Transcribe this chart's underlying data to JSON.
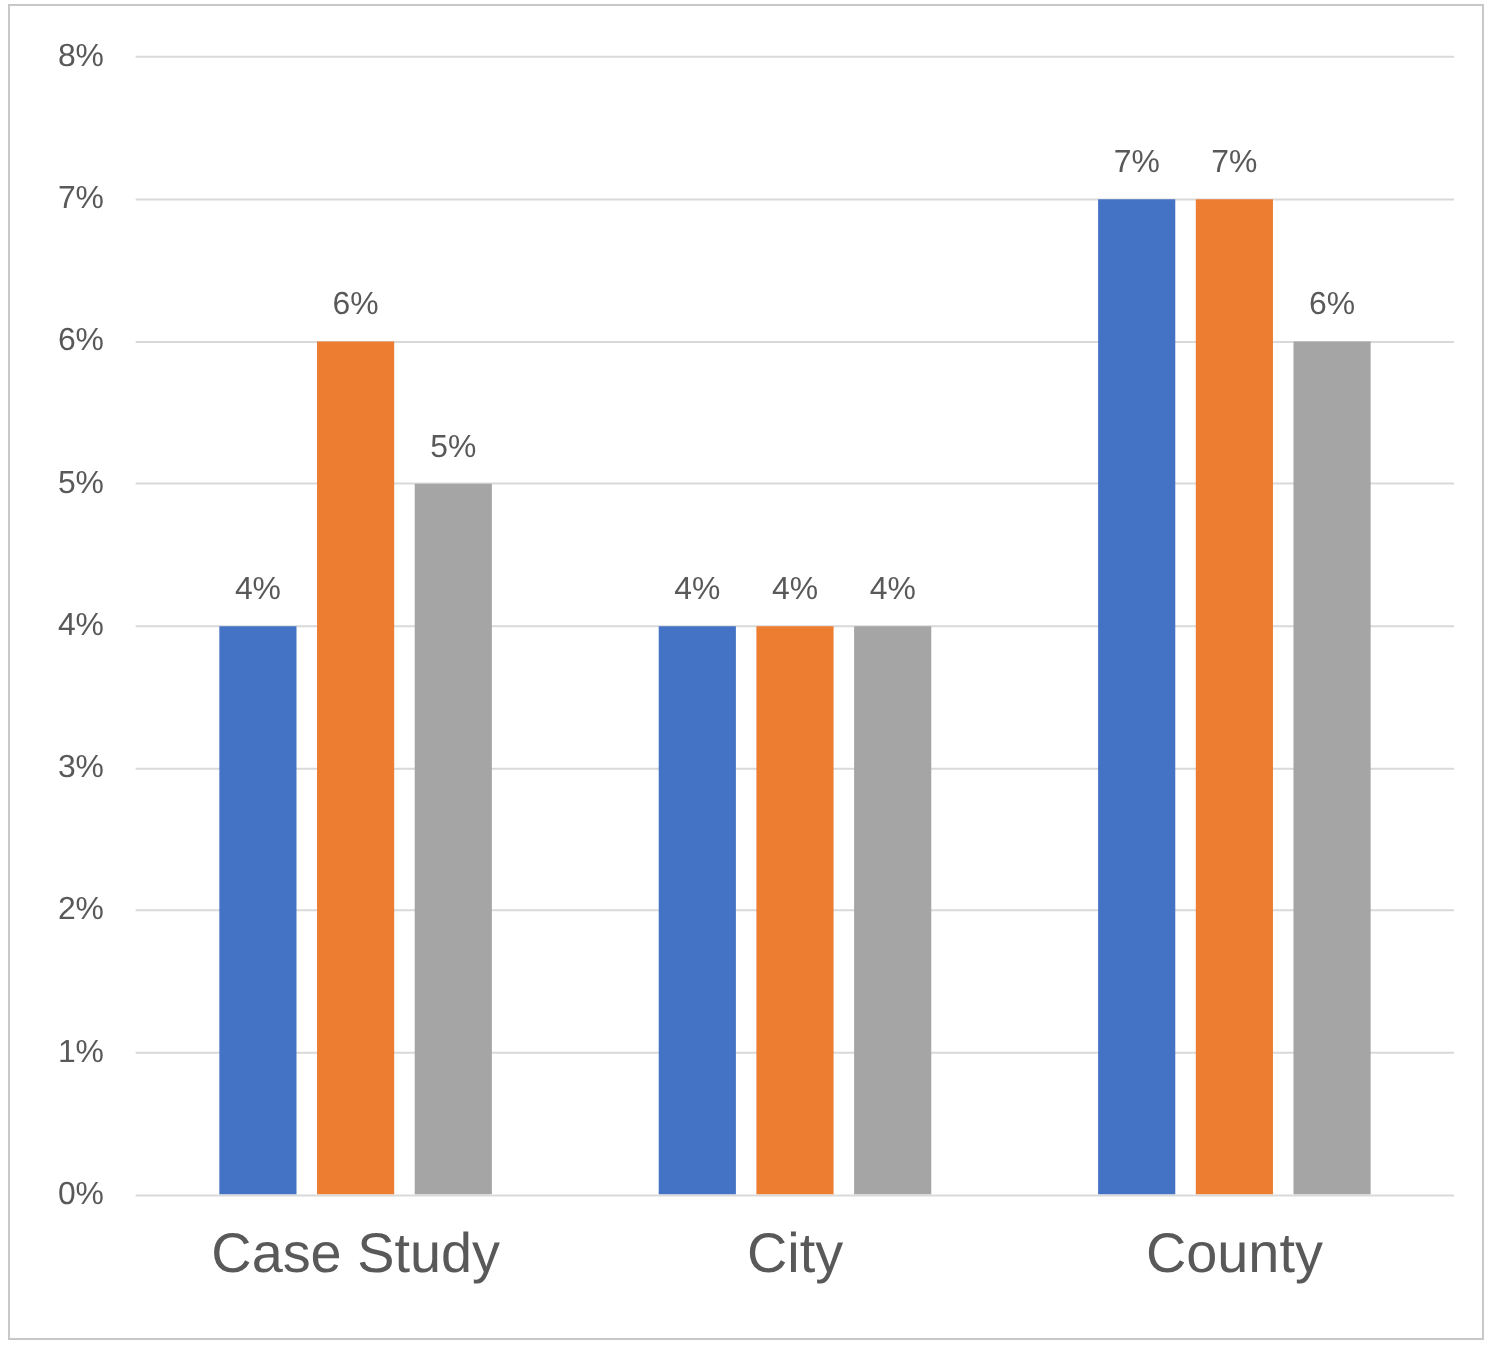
{
  "chart_data": {
    "type": "bar",
    "categories": [
      "Case Study",
      "City",
      "County"
    ],
    "series": [
      {
        "color": "#4472c4",
        "values": [
          4,
          4,
          7
        ],
        "value_labels": [
          "4%",
          "4%",
          "7%"
        ]
      },
      {
        "color": "#ed7d31",
        "values": [
          6,
          4,
          7
        ],
        "value_labels": [
          "6%",
          "4%",
          "7%"
        ]
      },
      {
        "color": "#a5a5a5",
        "values": [
          5,
          4,
          6
        ],
        "value_labels": [
          "5%",
          "4%",
          "6%"
        ]
      }
    ],
    "ylim": [
      0,
      8
    ],
    "yticks": [
      {
        "value": 0,
        "label": "0%"
      },
      {
        "value": 1,
        "label": "1%"
      },
      {
        "value": 2,
        "label": "2%"
      },
      {
        "value": 3,
        "label": "3%"
      },
      {
        "value": 4,
        "label": "4%"
      },
      {
        "value": 5,
        "label": "5%"
      },
      {
        "value": 6,
        "label": "6%"
      },
      {
        "value": 7,
        "label": "7%"
      },
      {
        "value": 8,
        "label": "8%"
      }
    ],
    "grid": "y",
    "legend": false
  }
}
